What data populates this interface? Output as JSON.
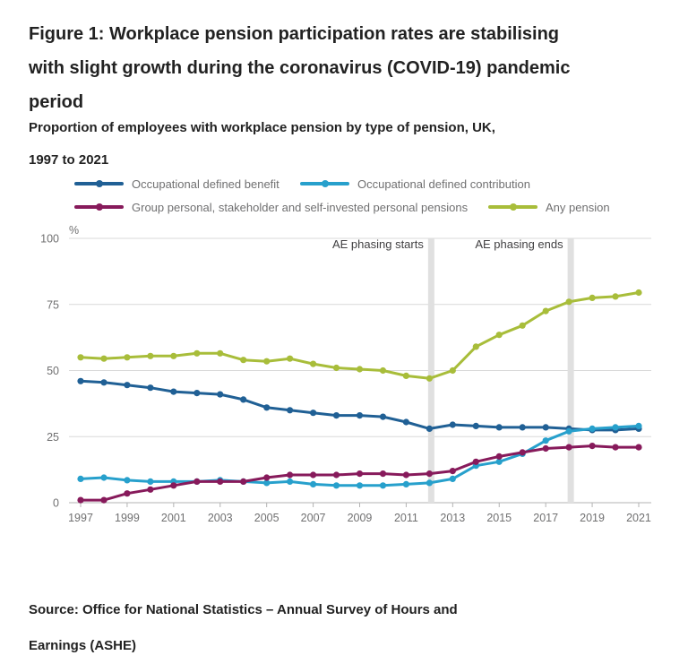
{
  "header": {
    "title": "Figure 1: Workplace pension participation rates are stabilising with slight growth during the coronavirus (COVID-19) pandemic period",
    "subtitle": "Proportion of employees with workplace pension by type of pension, UK, 1997 to 2021"
  },
  "source_note": "Source: Office for National Statistics – Annual Survey of Hours and Earnings (ASHE)",
  "colors": {
    "text": "#222222",
    "muted_text": "#707071",
    "annotation_text": "#414042",
    "gridline": "#d9d9d9",
    "axis": "#b3b3b3",
    "phasing_band": "#e0e0e0"
  },
  "chart_data": {
    "type": "line",
    "title": "Proportion of employees with workplace pension by type of pension, UK, 1997 to 2021",
    "unit_label": "%",
    "x": [
      1997,
      1998,
      1999,
      2000,
      2001,
      2002,
      2003,
      2004,
      2005,
      2006,
      2007,
      2008,
      2009,
      2010,
      2011,
      2012,
      2013,
      2014,
      2015,
      2016,
      2017,
      2018,
      2019,
      2020,
      2021
    ],
    "x_tick_labels": [
      "1997",
      "1999",
      "2001",
      "2003",
      "2005",
      "2007",
      "2009",
      "2011",
      "2013",
      "2015",
      "2017",
      "2019",
      "2021"
    ],
    "ylim": [
      0,
      100
    ],
    "yticks": [
      0,
      25,
      50,
      75,
      100
    ],
    "grid": true,
    "legend_position": "top",
    "series": [
      {
        "name": "Occupational defined benefit",
        "color": "#206095",
        "values": [
          46,
          45.5,
          44.5,
          43.5,
          42,
          41.5,
          41,
          39,
          36,
          35,
          34,
          33,
          33,
          32.5,
          30.5,
          28,
          29.5,
          29,
          28.5,
          28.5,
          28.5,
          28,
          27.5,
          27.5,
          28
        ]
      },
      {
        "name": "Occupational defined contribution",
        "color": "#27a0cc",
        "values": [
          9,
          9.5,
          8.5,
          8,
          8,
          8,
          8.5,
          8,
          7.5,
          8,
          7,
          6.5,
          6.5,
          6.5,
          7,
          7.5,
          9,
          14,
          15.5,
          18.5,
          23.5,
          27,
          28,
          28.5,
          29
        ]
      },
      {
        "name": "Group personal, stakeholder and self-invested personal pensions",
        "color": "#871a5b",
        "values": [
          1,
          1,
          3.5,
          5,
          6.5,
          8,
          8,
          8,
          9.5,
          10.5,
          10.5,
          10.5,
          11,
          11,
          10.5,
          11,
          12,
          15.5,
          17.5,
          19,
          20.5,
          21,
          21.5,
          21,
          21
        ]
      },
      {
        "name": "Any pension",
        "color": "#a8bd3a",
        "values": [
          55,
          54.5,
          55,
          55.5,
          55.5,
          56.5,
          56.5,
          54,
          53.5,
          54.5,
          52.5,
          51,
          50.5,
          50,
          48,
          47,
          50,
          59,
          63.5,
          67,
          72.5,
          76,
          77.5,
          78,
          79.5
        ]
      }
    ],
    "annotations": [
      {
        "label": "AE phasing starts",
        "year": 2012
      },
      {
        "label": "AE phasing ends",
        "year": 2018
      }
    ]
  }
}
